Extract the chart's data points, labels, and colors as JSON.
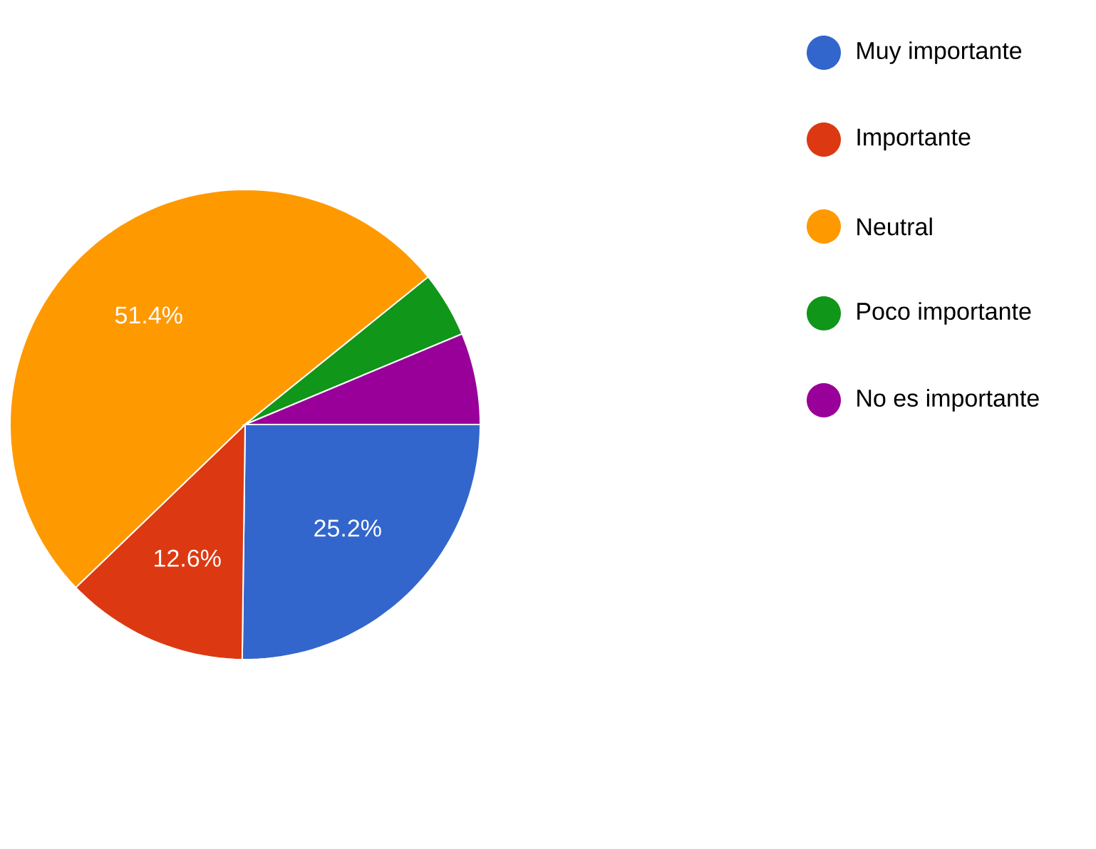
{
  "chart_data": {
    "type": "pie",
    "categories": [
      "Muy importante",
      "Importante",
      "Neutral",
      "Poco importante",
      "No es importante"
    ],
    "values": [
      25.2,
      12.6,
      51.4,
      4.5,
      6.3
    ],
    "colors": [
      "#3366cc",
      "#dc3912",
      "#ff9900",
      "#109618",
      "#990099"
    ],
    "value_labels": [
      "25.2%",
      "12.6%",
      "51.4%",
      null,
      null
    ],
    "legend": "top right"
  }
}
